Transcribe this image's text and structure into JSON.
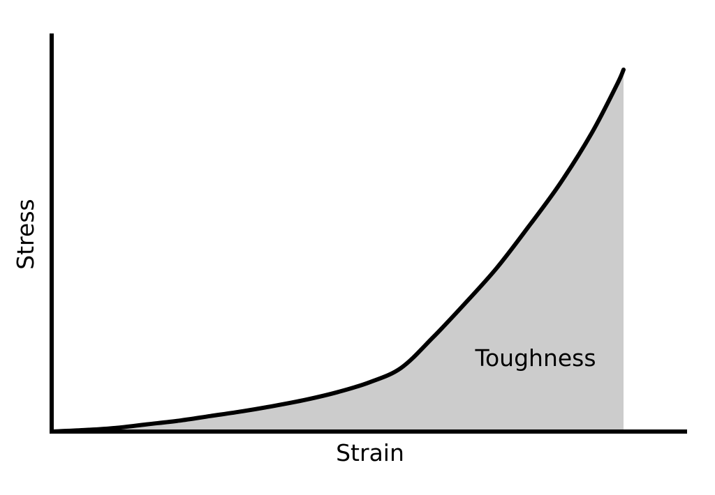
{
  "chart_data": {
    "type": "area",
    "title": "",
    "xlabel": "Strain",
    "ylabel": "Stress",
    "annotations": [
      "Toughness"
    ],
    "grid": false,
    "axes": {
      "show_ticks": false,
      "show_tick_labels": false
    },
    "series": [
      {
        "points": [
          {
            "x": 0.0,
            "y": 0.0
          },
          {
            "x": 0.05,
            "y": 0.004
          },
          {
            "x": 0.1,
            "y": 0.01
          },
          {
            "x": 0.15,
            "y": 0.02
          },
          {
            "x": 0.2,
            "y": 0.03
          },
          {
            "x": 0.25,
            "y": 0.043
          },
          {
            "x": 0.3,
            "y": 0.056
          },
          {
            "x": 0.35,
            "y": 0.071
          },
          {
            "x": 0.4,
            "y": 0.088
          },
          {
            "x": 0.45,
            "y": 0.109
          },
          {
            "x": 0.5,
            "y": 0.136
          },
          {
            "x": 0.55,
            "y": 0.176
          },
          {
            "x": 0.6,
            "y": 0.26
          },
          {
            "x": 0.65,
            "y": 0.353
          },
          {
            "x": 0.7,
            "y": 0.451
          },
          {
            "x": 0.75,
            "y": 0.565
          },
          {
            "x": 0.8,
            "y": 0.685
          },
          {
            "x": 0.85,
            "y": 0.825
          },
          {
            "x": 0.89,
            "y": 0.96
          },
          {
            "x": 0.9,
            "y": 1.0
          }
        ],
        "fill_under_curve": true
      }
    ],
    "xlim": [
      0,
      1
    ],
    "ylim": [
      0,
      1.1
    ],
    "colors": {
      "line": "#000000",
      "fill": "#cccccc",
      "axis": "#000000",
      "background": "#ffffff"
    }
  }
}
